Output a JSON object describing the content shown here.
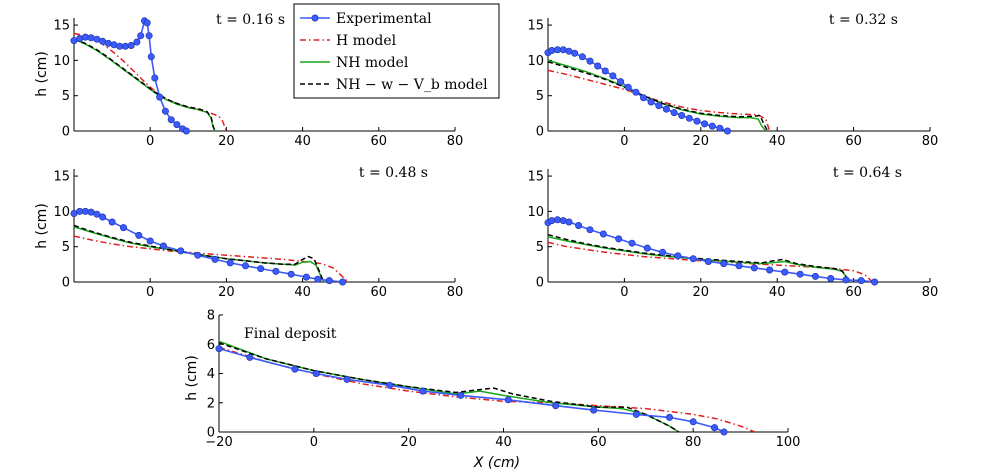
{
  "figure": {
    "x_axis_label": "X (cm)",
    "legend": [
      {
        "key": "exp",
        "label": "Experimental",
        "color": "#3b5bff",
        "style": "line-marker"
      },
      {
        "key": "h",
        "label": "H model",
        "color": "#e02020",
        "style": "dash-dot"
      },
      {
        "key": "nh",
        "label": "NH model",
        "color": "#1aa61a",
        "style": "solid"
      },
      {
        "key": "nhw",
        "label": "NH − w − V_b model",
        "color": "#000000",
        "style": "dashed"
      }
    ]
  },
  "chart_data": [
    {
      "type": "line",
      "title": "t = 0.16 s",
      "xlabel": "",
      "ylabel": "h (cm)",
      "xlim": [
        -20,
        80
      ],
      "ylim": [
        0,
        16
      ],
      "xticks": [
        0,
        20,
        40,
        60,
        80
      ],
      "yticks": [
        0,
        5,
        10,
        15
      ],
      "series": [
        {
          "name": "Experimental",
          "key": "exp",
          "x": [
            -20,
            -18.5,
            -17,
            -15.5,
            -14,
            -12.5,
            -11,
            -9.5,
            -8,
            -6.5,
            -5,
            -3.5,
            -2.5,
            -1.5,
            -0.8,
            -0.3,
            0.3,
            1.2,
            2.5,
            4,
            5.5,
            7,
            8.5,
            9.5
          ],
          "y": [
            12.8,
            13.1,
            13.3,
            13.2,
            13.0,
            12.7,
            12.4,
            12.2,
            12.0,
            12.0,
            12.1,
            12.6,
            13.5,
            15.6,
            15.3,
            13.5,
            10.5,
            7.5,
            4.8,
            2.8,
            1.6,
            0.9,
            0.3,
            0.0
          ]
        },
        {
          "name": "H model",
          "key": "h",
          "x": [
            -20,
            -17,
            -15,
            -13,
            -10,
            -7,
            -4,
            -1,
            2,
            5,
            8,
            11,
            14,
            16,
            18,
            19,
            20
          ],
          "y": [
            13.8,
            13.5,
            13.1,
            12.5,
            11.3,
            9.9,
            8.3,
            6.7,
            5.3,
            4.3,
            3.7,
            3.2,
            2.8,
            2.5,
            2.1,
            1.4,
            0.0
          ]
        },
        {
          "name": "NH model",
          "key": "nh",
          "x": [
            -20,
            -17,
            -14,
            -11,
            -8,
            -5,
            -2,
            1,
            4,
            7,
            10,
            13,
            15,
            16,
            16.5,
            17
          ],
          "y": [
            13.0,
            12.3,
            11.4,
            10.3,
            9.1,
            7.9,
            6.7,
            5.5,
            4.5,
            3.8,
            3.3,
            3.0,
            2.6,
            1.8,
            0.6,
            0.0
          ]
        },
        {
          "name": "NH − w − V_b model",
          "key": "nhw",
          "x": [
            -20,
            -17,
            -14,
            -11,
            -8,
            -5,
            -2,
            1,
            4,
            7,
            10,
            13,
            15,
            16,
            16.5,
            17
          ],
          "y": [
            13.0,
            12.4,
            11.5,
            10.4,
            9.2,
            8.0,
            6.8,
            5.6,
            4.6,
            3.9,
            3.4,
            3.1,
            2.7,
            1.9,
            0.7,
            0.0
          ]
        }
      ]
    },
    {
      "type": "line",
      "title": "t = 0.32 s",
      "xlabel": "",
      "ylabel": "",
      "xlim": [
        -20,
        80
      ],
      "ylim": [
        0,
        16
      ],
      "xticks": [
        0,
        20,
        40,
        60,
        80
      ],
      "yticks": [
        0,
        5,
        10,
        15
      ],
      "series": [
        {
          "name": "Experimental",
          "key": "exp",
          "x": [
            -20,
            -19,
            -17.5,
            -16,
            -14.5,
            -13,
            -11,
            -9,
            -7,
            -5,
            -3,
            -1,
            1,
            3,
            5,
            7,
            9,
            11,
            13,
            15,
            17,
            19,
            21,
            23,
            25,
            27
          ],
          "y": [
            11.1,
            11.4,
            11.5,
            11.5,
            11.3,
            11.0,
            10.5,
            9.9,
            9.2,
            8.5,
            7.8,
            7.0,
            6.2,
            5.5,
            4.7,
            4.1,
            3.6,
            3.1,
            2.6,
            2.2,
            1.8,
            1.4,
            1.0,
            0.7,
            0.4,
            0.0
          ]
        },
        {
          "name": "H model",
          "key": "h",
          "x": [
            -20,
            -15,
            -10,
            -5,
            0,
            5,
            10,
            15,
            20,
            25,
            30,
            35,
            37,
            38
          ],
          "y": [
            8.6,
            8.0,
            7.3,
            6.6,
            5.9,
            5.0,
            4.1,
            3.4,
            2.9,
            2.6,
            2.4,
            2.3,
            1.7,
            0.0
          ]
        },
        {
          "name": "NH model",
          "key": "nh",
          "x": [
            -20,
            -15,
            -10,
            -5,
            0,
            5,
            10,
            15,
            20,
            25,
            30,
            33,
            35,
            36,
            37
          ],
          "y": [
            10.0,
            9.2,
            8.4,
            7.4,
            6.3,
            5.0,
            3.9,
            3.0,
            2.4,
            2.1,
            1.9,
            1.9,
            1.7,
            0.7,
            0.0
          ]
        },
        {
          "name": "NH − w − V_b model",
          "key": "nhw",
          "x": [
            -20,
            -15,
            -10,
            -5,
            0,
            5,
            10,
            15,
            20,
            25,
            30,
            34,
            35.5,
            36.5,
            37.5
          ],
          "y": [
            9.8,
            9.0,
            8.2,
            7.3,
            6.2,
            5.0,
            3.9,
            3.1,
            2.5,
            2.2,
            2.0,
            2.1,
            2.2,
            1.0,
            0.0
          ]
        }
      ]
    },
    {
      "type": "line",
      "title": "t = 0.48 s",
      "xlabel": "",
      "ylabel": "h (cm)",
      "xlim": [
        -20,
        80
      ],
      "ylim": [
        0,
        16
      ],
      "xticks": [
        0,
        20,
        40,
        60,
        80
      ],
      "yticks": [
        0,
        5,
        10,
        15
      ],
      "series": [
        {
          "name": "Experimental",
          "key": "exp",
          "x": [
            -20,
            -18.5,
            -17,
            -15.5,
            -14,
            -12.5,
            -10,
            -7,
            -3,
            0,
            3.5,
            8,
            12.5,
            17,
            21,
            25,
            29,
            33,
            37,
            41,
            44,
            47,
            50.5
          ],
          "y": [
            9.7,
            10.0,
            10.0,
            9.9,
            9.6,
            9.2,
            8.5,
            7.7,
            6.6,
            5.8,
            5.1,
            4.4,
            3.8,
            3.2,
            2.7,
            2.3,
            1.9,
            1.5,
            1.1,
            0.7,
            0.4,
            0.2,
            0.0
          ]
        },
        {
          "name": "H model",
          "key": "h",
          "x": [
            -20,
            -15,
            -10,
            -5,
            0,
            5,
            10,
            15,
            20,
            25,
            30,
            35,
            40,
            45,
            48,
            50,
            52
          ],
          "y": [
            6.5,
            5.9,
            5.4,
            5.0,
            4.7,
            4.4,
            4.2,
            4.0,
            3.8,
            3.6,
            3.4,
            3.2,
            2.9,
            2.6,
            2.0,
            1.0,
            0.0
          ]
        },
        {
          "name": "NH model",
          "key": "nh",
          "x": [
            -20,
            -15,
            -10,
            -5,
            0,
            5,
            10,
            15,
            20,
            25,
            30,
            35,
            38,
            40,
            42,
            43.5,
            44.5,
            45.5
          ],
          "y": [
            7.8,
            7.0,
            6.2,
            5.5,
            5.0,
            4.6,
            4.1,
            3.7,
            3.3,
            3.0,
            2.7,
            2.5,
            2.4,
            2.8,
            2.9,
            2.4,
            1.2,
            0.0
          ]
        },
        {
          "name": "NH − w − V_b model",
          "key": "nhw",
          "x": [
            -20,
            -15,
            -10,
            -5,
            0,
            5,
            10,
            15,
            20,
            25,
            30,
            35,
            38,
            40,
            41.5,
            43,
            44.5,
            45.5
          ],
          "y": [
            8.0,
            7.1,
            6.3,
            5.6,
            5.1,
            4.6,
            4.1,
            3.7,
            3.3,
            3.0,
            2.7,
            2.5,
            2.5,
            3.2,
            3.6,
            3.3,
            1.4,
            0.0
          ]
        }
      ]
    },
    {
      "type": "line",
      "title": "t = 0.64 s",
      "xlabel": "",
      "ylabel": "",
      "xlim": [
        -20,
        80
      ],
      "ylim": [
        0,
        16
      ],
      "xticks": [
        0,
        20,
        40,
        60,
        80
      ],
      "yticks": [
        0,
        5,
        10,
        15
      ],
      "series": [
        {
          "name": "Experimental",
          "key": "exp",
          "x": [
            -20,
            -19,
            -17.5,
            -16,
            -14.5,
            -12,
            -9,
            -5.5,
            -1.5,
            2,
            6,
            10,
            14,
            18,
            22,
            26,
            30,
            34,
            38,
            42,
            46,
            50,
            54,
            58,
            62,
            65.5
          ],
          "y": [
            8.4,
            8.7,
            8.8,
            8.7,
            8.5,
            8.0,
            7.4,
            6.8,
            6.1,
            5.5,
            4.8,
            4.2,
            3.7,
            3.3,
            2.9,
            2.6,
            2.3,
            2.0,
            1.7,
            1.4,
            1.1,
            0.8,
            0.5,
            0.3,
            0.2,
            0.0
          ]
        },
        {
          "name": "H model",
          "key": "h",
          "x": [
            -20,
            -15,
            -10,
            -5,
            0,
            5,
            10,
            20,
            30,
            40,
            50,
            55,
            60,
            63,
            65
          ],
          "y": [
            5.6,
            5.0,
            4.6,
            4.2,
            3.9,
            3.6,
            3.4,
            3.0,
            2.7,
            2.4,
            2.1,
            1.9,
            1.6,
            1.0,
            0.0
          ]
        },
        {
          "name": "NH model",
          "key": "nh",
          "x": [
            -20,
            -15,
            -10,
            -5,
            0,
            5,
            10,
            20,
            30,
            36,
            40,
            42,
            45,
            50,
            55,
            57,
            58,
            59
          ],
          "y": [
            6.4,
            5.8,
            5.3,
            4.8,
            4.4,
            4.0,
            3.7,
            3.2,
            2.8,
            2.6,
            2.8,
            2.9,
            2.5,
            2.1,
            1.8,
            1.5,
            0.8,
            0.0
          ]
        },
        {
          "name": "NH − w − V_b model",
          "key": "nhw",
          "x": [
            -20,
            -15,
            -10,
            -5,
            0,
            5,
            10,
            20,
            30,
            36,
            39,
            41.5,
            45,
            50,
            55,
            57,
            58,
            59
          ],
          "y": [
            6.7,
            6.0,
            5.4,
            4.9,
            4.5,
            4.1,
            3.8,
            3.3,
            2.9,
            2.7,
            3.0,
            3.2,
            2.6,
            2.2,
            1.9,
            1.6,
            0.8,
            0.0
          ]
        }
      ]
    },
    {
      "type": "line",
      "title": "Final deposit",
      "xlabel": "X (cm)",
      "ylabel": "h (cm)",
      "xlim": [
        -20,
        100
      ],
      "ylim": [
        0,
        8
      ],
      "xticks": [
        -20,
        0,
        20,
        40,
        60,
        80,
        100
      ],
      "yticks": [
        0,
        2,
        4,
        6,
        8
      ],
      "series": [
        {
          "name": "Experimental",
          "key": "exp",
          "x": [
            -20,
            -13.5,
            -4,
            0.5,
            7,
            16,
            23,
            31,
            41,
            51,
            59,
            68,
            75,
            80,
            84.5,
            86.5
          ],
          "y": [
            5.7,
            5.1,
            4.3,
            4.0,
            3.6,
            3.2,
            2.8,
            2.5,
            2.2,
            1.8,
            1.5,
            1.2,
            1.0,
            0.7,
            0.3,
            0.0
          ]
        },
        {
          "name": "H model",
          "key": "h",
          "x": [
            -20,
            -10,
            0,
            10,
            20,
            30,
            40,
            50,
            60,
            70,
            80,
            85,
            90,
            93
          ],
          "y": [
            5.8,
            4.8,
            4.0,
            3.3,
            2.8,
            2.4,
            2.1,
            2.0,
            1.8,
            1.6,
            1.2,
            0.9,
            0.4,
            0.0
          ]
        },
        {
          "name": "NH model",
          "key": "nh",
          "x": [
            -20,
            -10,
            0,
            10,
            20,
            30,
            35,
            40,
            50,
            60,
            65,
            70,
            75,
            77
          ],
          "y": [
            6.2,
            5.0,
            4.2,
            3.6,
            3.1,
            2.6,
            2.8,
            2.5,
            2.0,
            1.7,
            1.6,
            1.2,
            0.4,
            0.0
          ]
        },
        {
          "name": "NH − w − V_b model",
          "key": "nhw",
          "x": [
            -20,
            -10,
            0,
            10,
            20,
            30,
            35,
            38,
            42,
            50,
            60,
            66,
            70,
            75,
            77
          ],
          "y": [
            6.1,
            5.0,
            4.2,
            3.6,
            3.1,
            2.7,
            2.9,
            3.0,
            2.6,
            2.1,
            1.7,
            1.7,
            1.2,
            0.4,
            0.0
          ]
        }
      ]
    }
  ]
}
